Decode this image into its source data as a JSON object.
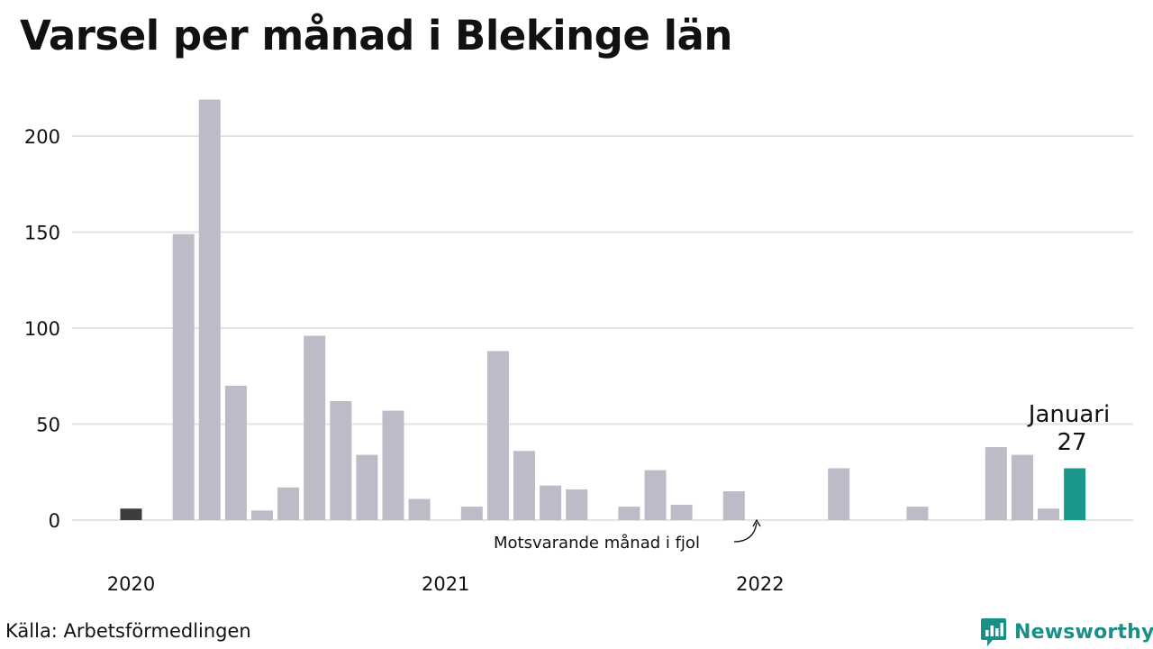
{
  "title": "Varsel per månad i Blekinge län",
  "source": "Källa: Arbetsförmedlingen",
  "brand": {
    "name": "Newsworthy",
    "icon": "newsworthy-logo-icon"
  },
  "annotation": {
    "text": "Motsvarande månad i fjol"
  },
  "highlight": {
    "label": "Januari",
    "value": "27"
  },
  "colors": {
    "bar": "#bcbbc8",
    "last_year": "#3d3d3d",
    "current": "#1a968a",
    "grid": "#e3e3e3",
    "brand": "#1a8f86"
  },
  "chart_data": {
    "type": "bar",
    "title": "Varsel per månad i Blekinge län",
    "xlabel": "",
    "ylabel": "",
    "ylim": [
      0,
      230
    ],
    "yticks": [
      0,
      50,
      100,
      150,
      200
    ],
    "grid": true,
    "x_tick_labels": [
      {
        "label": "2020",
        "index": 0
      },
      {
        "label": "2021",
        "index": 12
      },
      {
        "label": "2022",
        "index": 24
      }
    ],
    "categories": [
      "2020-01",
      "2020-02",
      "2020-03",
      "2020-04",
      "2020-05",
      "2020-06",
      "2020-07",
      "2020-08",
      "2020-09",
      "2020-10",
      "2020-11",
      "2020-12",
      "2021-01",
      "2021-02",
      "2021-03",
      "2021-04",
      "2021-05",
      "2021-06",
      "2021-07",
      "2021-08",
      "2021-09",
      "2021-10",
      "2021-11",
      "2021-12",
      "2022-01",
      "2022-02",
      "2022-03",
      "2022-04",
      "2022-05",
      "2022-06",
      "2022-07",
      "2022-08",
      "2022-09",
      "2022-10",
      "2022-11",
      "2022-12",
      "2023-01"
    ],
    "values": [
      6,
      0,
      149,
      219,
      70,
      5,
      17,
      96,
      62,
      34,
      57,
      11,
      0,
      7,
      88,
      36,
      18,
      16,
      0,
      7,
      26,
      8,
      0,
      15,
      0,
      0,
      0,
      27,
      0,
      0,
      7,
      0,
      0,
      38,
      34,
      6,
      27
    ],
    "highlight_last_year_index": 0,
    "highlight_current_index": 36
  }
}
